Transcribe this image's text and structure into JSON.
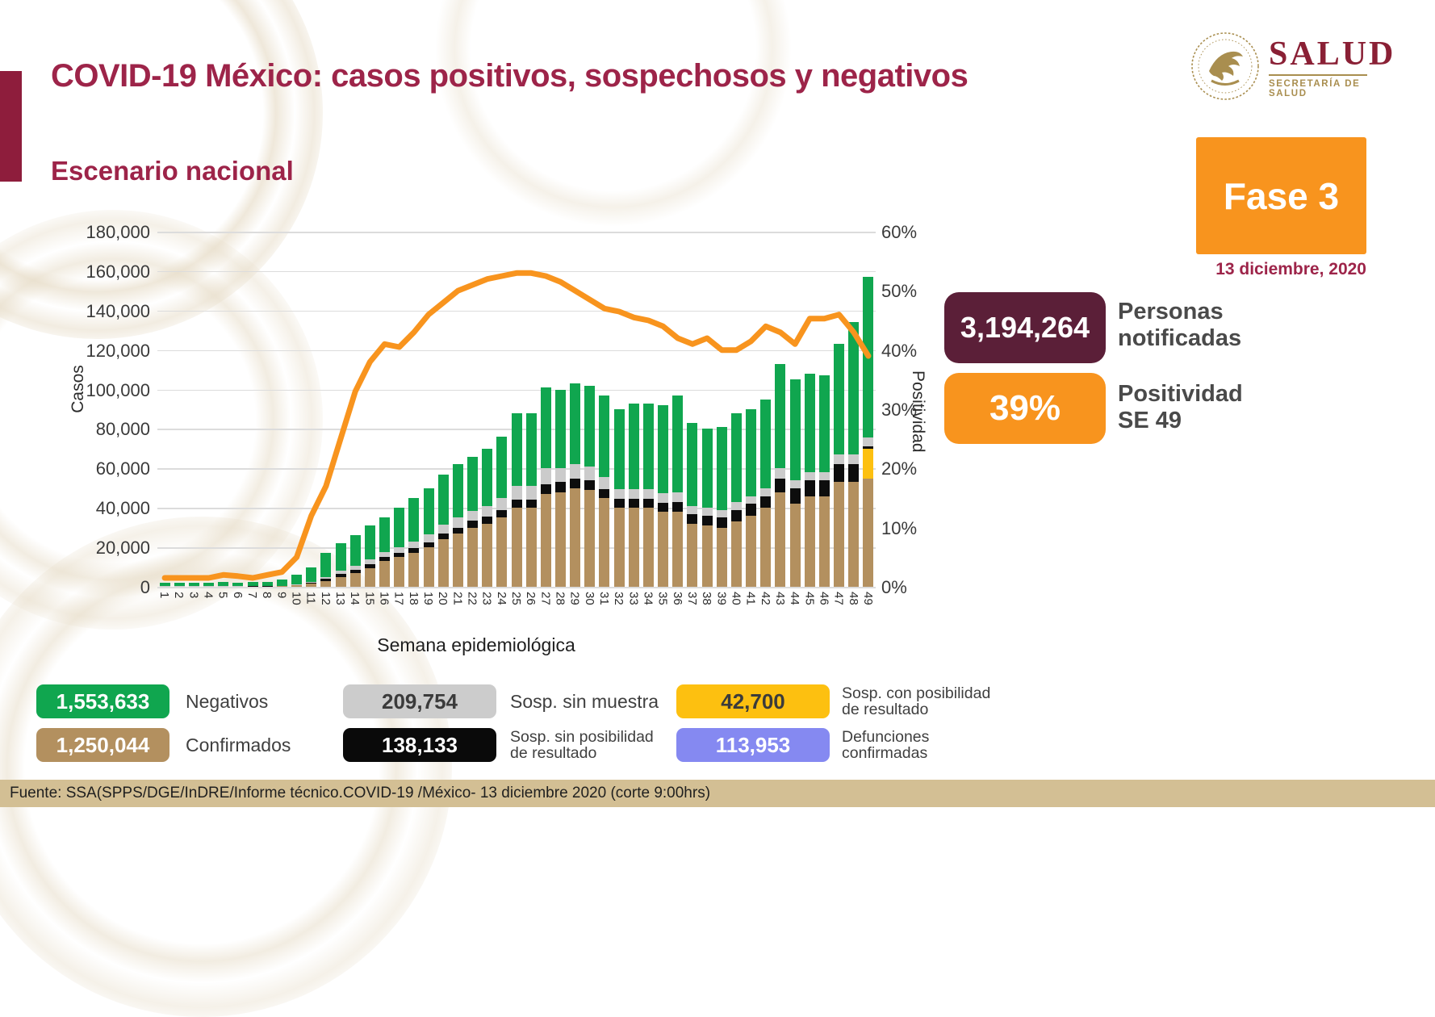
{
  "title": "COVID-19 México: casos positivos, sospechosos y negativos",
  "subtitle": "Escenario nacional",
  "logo": {
    "name": "SALUD",
    "subname": "SECRETARÍA DE SALUD"
  },
  "phase": {
    "label": "Fase 3",
    "date": "13 diciembre, 2020"
  },
  "stats": {
    "notified": {
      "value": "3,194,264",
      "label": "Personas\nnotificadas",
      "color": "#5B1F38"
    },
    "positivity": {
      "value": "39%",
      "label": "Positividad\nSE 49",
      "color": "#F8941E"
    }
  },
  "chart_data": {
    "type": "bar+line",
    "xlabel": "Semana epidemiológica",
    "ylabel_left": "Casos",
    "ylabel_right": "Positividad",
    "ylim_left": [
      0,
      180000
    ],
    "ylim_right": [
      0,
      60
    ],
    "grid": true,
    "yticks_left": [
      "180,000",
      "160,000",
      "140,000",
      "120,000",
      "100,000",
      "80,000",
      "60,000",
      "40,000",
      "20,000",
      "0"
    ],
    "yticks_right": [
      "60%",
      "50%",
      "40%",
      "30%",
      "20%",
      "10%",
      "0%"
    ],
    "weeks": [
      1,
      2,
      3,
      4,
      5,
      6,
      7,
      8,
      9,
      10,
      11,
      12,
      13,
      14,
      15,
      16,
      17,
      18,
      19,
      20,
      21,
      22,
      23,
      24,
      25,
      26,
      27,
      28,
      29,
      30,
      31,
      32,
      33,
      34,
      35,
      36,
      37,
      38,
      39,
      40,
      41,
      42,
      43,
      44,
      45,
      46,
      47,
      48,
      49
    ],
    "series": [
      {
        "name": "Confirmados",
        "color": "#B3905F",
        "values": [
          100,
          100,
          100,
          150,
          150,
          150,
          200,
          200,
          300,
          800,
          1500,
          3000,
          5000,
          7000,
          9500,
          13000,
          15000,
          17000,
          20000,
          24000,
          27000,
          30000,
          32000,
          35000,
          40000,
          40000,
          47000,
          48000,
          50000,
          49000,
          45000,
          40000,
          40000,
          40000,
          38000,
          38000,
          32000,
          31000,
          30000,
          33000,
          36000,
          40000,
          48000,
          42000,
          46000,
          46000,
          53000,
          53000,
          55000
        ]
      },
      {
        "name": "Sosp. con posibilidad de resultado",
        "color": "#FDC010",
        "values": [
          0,
          0,
          0,
          0,
          0,
          0,
          0,
          0,
          0,
          0,
          0,
          0,
          0,
          0,
          0,
          0,
          0,
          0,
          0,
          0,
          0,
          0,
          0,
          0,
          0,
          0,
          0,
          0,
          0,
          0,
          0,
          0,
          0,
          0,
          0,
          0,
          0,
          0,
          0,
          0,
          0,
          0,
          0,
          0,
          0,
          0,
          0,
          0,
          15000
        ]
      },
      {
        "name": "Sosp. sin posibilidad de resultado",
        "color": "#0D0D0D",
        "values": [
          50,
          50,
          50,
          50,
          50,
          50,
          50,
          100,
          100,
          200,
          500,
          1000,
          1500,
          1500,
          2000,
          2000,
          2000,
          2500,
          2500,
          3000,
          3000,
          3500,
          3500,
          4000,
          4000,
          4000,
          5000,
          5000,
          5000,
          5000,
          4500,
          4500,
          4500,
          4500,
          4500,
          5000,
          5000,
          5000,
          5000,
          6000,
          6000,
          6000,
          7000,
          8000,
          8000,
          8000,
          9000,
          9000,
          1200
        ]
      },
      {
        "name": "Sosp. sin muestra",
        "color": "#CBCBCB",
        "values": [
          100,
          100,
          100,
          100,
          100,
          100,
          100,
          100,
          200,
          300,
          500,
          1000,
          1500,
          2000,
          2500,
          2500,
          3000,
          3500,
          4000,
          4500,
          5000,
          5000,
          5500,
          6000,
          7000,
          7000,
          8000,
          7000,
          7000,
          7000,
          6000,
          5000,
          5000,
          5000,
          5000,
          5000,
          4000,
          4000,
          4000,
          4000,
          4000,
          4000,
          5000,
          4000,
          4000,
          4000,
          5000,
          5000,
          4500
        ]
      },
      {
        "name": "Negativos",
        "color": "#10A64F",
        "values": [
          1750,
          1750,
          1950,
          1900,
          2000,
          1900,
          1950,
          2100,
          2900,
          4700,
          7500,
          12000,
          14000,
          15500,
          17000,
          17500,
          20000,
          22000,
          23500,
          25500,
          27000,
          27500,
          29000,
          31000,
          37000,
          37000,
          41000,
          40000,
          41000,
          41000,
          41500,
          40500,
          43500,
          43500,
          44500,
          49000,
          42000,
          40000,
          42000,
          45000,
          44000,
          45000,
          53000,
          51000,
          50000,
          49000,
          56000,
          67000,
          81300
        ]
      }
    ],
    "line": {
      "name": "Positividad",
      "color": "#F8941E",
      "values": [
        1.5,
        1.5,
        1.5,
        1.5,
        2,
        1.8,
        1.5,
        2,
        2.5,
        5,
        12,
        17,
        25,
        33,
        38,
        41,
        40.5,
        43,
        46,
        48,
        50,
        51,
        52,
        52.5,
        53,
        53,
        52.5,
        51.5,
        50,
        48.5,
        47,
        46.5,
        45.5,
        45,
        44,
        42,
        41,
        42,
        40,
        40,
        41.5,
        44,
        43,
        41,
        45.3,
        45.3,
        46,
        43,
        39
      ]
    }
  },
  "legend": [
    {
      "value": "1,553,633",
      "label": "Negativos",
      "box": "#10A64F",
      "text": "#FFFFFF",
      "row": 0,
      "col": 0
    },
    {
      "value": "209,754",
      "label": "Sosp. sin muestra",
      "box": "#CCCCCC",
      "text": "#3B3B3B",
      "row": 0,
      "col": 1
    },
    {
      "value": "42,700",
      "label": "Sosp. con posibilidad\nde resultado",
      "box": "#FDC010",
      "text": "#3B3B3B",
      "row": 0,
      "col": 2
    },
    {
      "value": "1,250,044",
      "label": "Confirmados",
      "box": "#B3905F",
      "text": "#FFFFFF",
      "row": 1,
      "col": 0
    },
    {
      "value": "138,133",
      "label": "Sosp. sin posibilidad\nde resultado",
      "box": "#0A0A0A",
      "text": "#FFFFFF",
      "row": 1,
      "col": 1
    },
    {
      "value": "113,953",
      "label": "Defunciones\nconfirmadas",
      "box": "#8589F1",
      "text": "#FFFFFF",
      "row": 1,
      "col": 2
    }
  ],
  "footer": "Fuente: SSA(SPPS/DGE/InDRE/Informe técnico.COVID-19 /México- 13 diciembre 2020 (corte 9:00hrs)"
}
